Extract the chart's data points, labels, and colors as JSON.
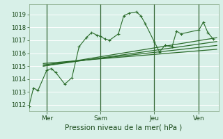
{
  "background_color": "#d8f0e8",
  "plot_bg_color": "#d8f0e8",
  "grid_color": "#b8e0d0",
  "line_color": "#2a6b2a",
  "marker_color": "#2a6b2a",
  "xlabel": "Pression niveau de la mer( hPa )",
  "ylim": [
    1011.5,
    1019.8
  ],
  "yticks": [
    1012,
    1013,
    1014,
    1015,
    1016,
    1017,
    1018,
    1019
  ],
  "xlim": [
    0.0,
    10.6
  ],
  "vlines_x": [
    1.0,
    4.0,
    7.0,
    9.5
  ],
  "x_tick_labels": [
    "Mer",
    "Sam",
    "Jeu",
    "Ven"
  ],
  "x_tick_positions": [
    1.0,
    4.0,
    7.0,
    9.5
  ],
  "series1": {
    "x": [
      0.0,
      0.25,
      0.5,
      1.0,
      1.25,
      1.5,
      2.0,
      2.4,
      2.8,
      3.2,
      3.5,
      3.8,
      4.0,
      4.25,
      4.5,
      5.0,
      5.3,
      5.6,
      6.0,
      6.25,
      6.5,
      7.0,
      7.3,
      7.6,
      8.0,
      8.25,
      8.5,
      9.5,
      9.75,
      10.0,
      10.3
    ],
    "y": [
      1011.9,
      1013.3,
      1013.1,
      1014.7,
      1014.8,
      1014.5,
      1013.6,
      1014.1,
      1016.5,
      1017.2,
      1017.6,
      1017.4,
      1017.3,
      1017.1,
      1017.0,
      1017.5,
      1018.9,
      1019.1,
      1019.2,
      1018.9,
      1018.3,
      1016.9,
      1016.1,
      1016.6,
      1016.5,
      1017.7,
      1017.5,
      1017.8,
      1018.4,
      1017.6,
      1017.1
    ]
  },
  "series2": {
    "x": [
      0.8,
      10.5
    ],
    "y": [
      1015.0,
      1017.2
    ]
  },
  "series3": {
    "x": [
      0.8,
      10.5
    ],
    "y": [
      1015.0,
      1016.9
    ]
  },
  "series4": {
    "x": [
      0.8,
      10.5
    ],
    "y": [
      1015.1,
      1016.6
    ]
  },
  "series5": {
    "x": [
      0.8,
      10.5
    ],
    "y": [
      1015.2,
      1016.3
    ]
  }
}
